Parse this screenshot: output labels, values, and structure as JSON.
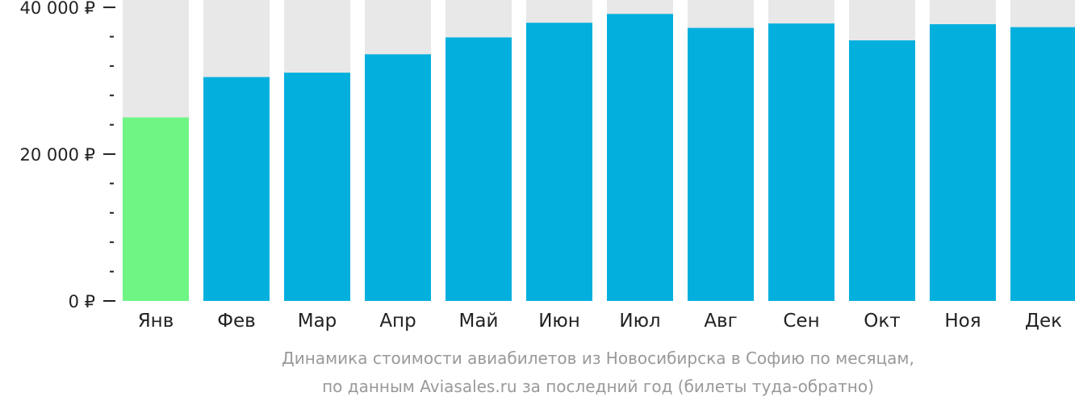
{
  "chart_data": {
    "type": "bar",
    "categories": [
      "Янв",
      "Фев",
      "Мар",
      "Апр",
      "Май",
      "Июн",
      "Июл",
      "Авг",
      "Сен",
      "Окт",
      "Ноя",
      "Дек"
    ],
    "values": [
      25000,
      30500,
      31100,
      33600,
      35900,
      37900,
      39100,
      37200,
      37800,
      35500,
      37700,
      37300
    ],
    "ylim": [
      0,
      41000
    ],
    "y_major_ticks": [
      0,
      20000,
      40000
    ],
    "y_tick_labels": [
      "0 ₽",
      "20 000 ₽",
      "40 000 ₽"
    ],
    "y_minor_step": 4000,
    "highlight_index": 0,
    "colors": {
      "bar": "#03b0dd",
      "highlight": "#6ef584",
      "background_bar": "#e8e8e8",
      "axis": "#222222"
    },
    "caption_line1": "Динамика стоимости авиабилетов из Новосибирска в Софию по месяцам,",
    "caption_line2": "по данным Aviasales.ru за последний год (билеты туда-обратно)"
  }
}
